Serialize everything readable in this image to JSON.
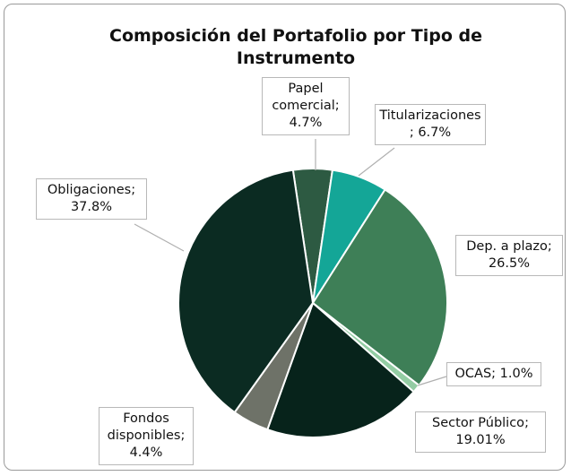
{
  "chart_data": {
    "type": "pie",
    "title": "Composición del Portafolio por Tipo de Instrumento",
    "categories": [
      "Papel comercial",
      "Titularizaciones",
      "Dep. a plazo",
      "OCAS",
      "Sector Público",
      "Fondos disponibles",
      "Obligaciones"
    ],
    "values": [
      4.7,
      6.7,
      26.5,
      1.0,
      19.01,
      4.4,
      37.8
    ],
    "value_labels": [
      "4.7%",
      "6.7%",
      "26.5%",
      "1.0%",
      "19.01%",
      "4.4%",
      "37.8%"
    ],
    "label_separator": ";",
    "colors": [
      "#2d5a42",
      "#14a697",
      "#3e7f57",
      "#93cca3",
      "#07231b",
      "#6e7268",
      "#0b2b22"
    ]
  }
}
